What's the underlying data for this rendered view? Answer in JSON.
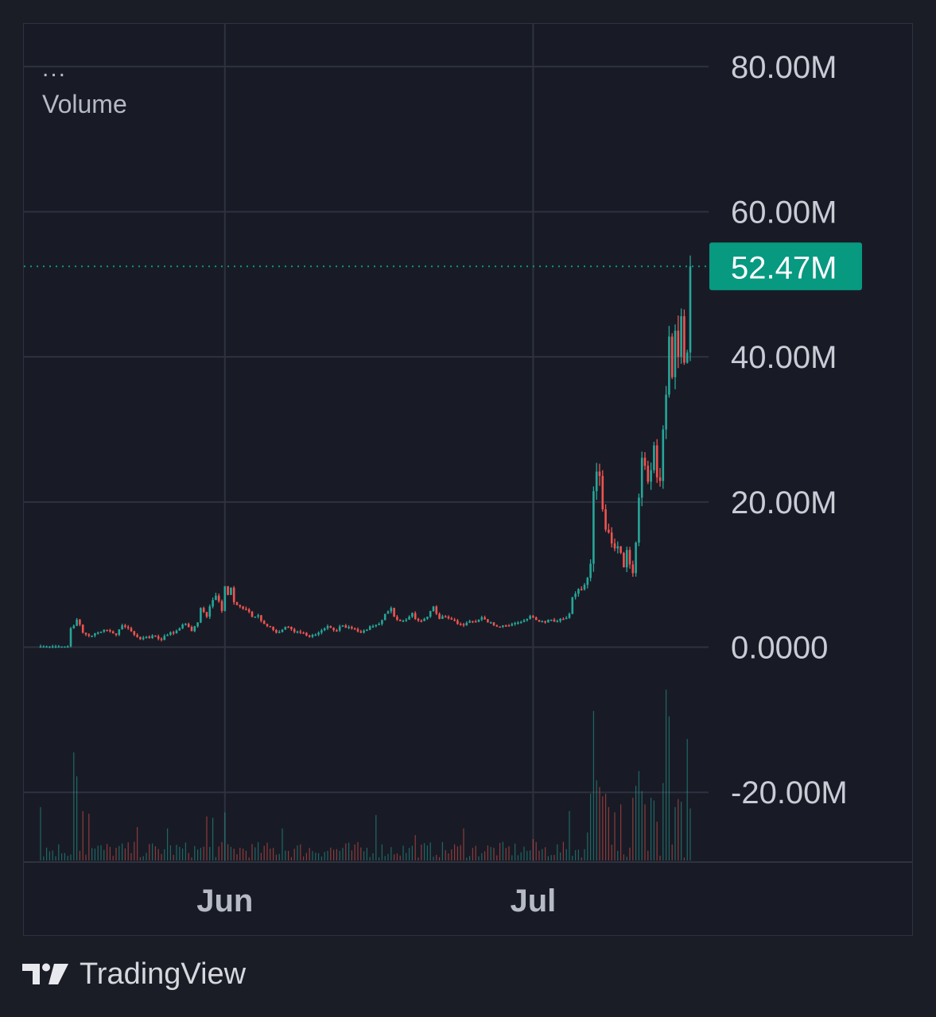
{
  "legend": {
    "dots": "...",
    "volume_label": "Volume"
  },
  "price_tag": {
    "label": "52.47M",
    "color": "#089981"
  },
  "brand": {
    "name": "TradingView"
  },
  "colors": {
    "up": "#26a69a",
    "down": "#ef5350",
    "grid": "#2e3240",
    "background": "#181b25"
  },
  "chart_data": {
    "type": "candlestick",
    "title": "",
    "xlabel": "",
    "ylabel": "",
    "y_ticks": [
      {
        "value": 80,
        "label": "80.00M"
      },
      {
        "value": 60,
        "label": "60.00M"
      },
      {
        "value": 40,
        "label": "40.00M"
      },
      {
        "value": 20,
        "label": "20.00M"
      },
      {
        "value": 0,
        "label": "0.0000"
      },
      {
        "value": -20,
        "label": "-20.00M"
      }
    ],
    "ylim": [
      -29.5,
      86
    ],
    "x_ticks": [
      {
        "label": "Jun",
        "index": 61
      },
      {
        "label": "Jul",
        "index": 163
      }
    ],
    "last_value": 52.47,
    "unit": "M",
    "grid": true,
    "price_series": [
      [
        0,
        0.1
      ],
      [
        9,
        0.1
      ],
      [
        10,
        2.6
      ],
      [
        12,
        3.8
      ],
      [
        14,
        2.0
      ],
      [
        17,
        1.6
      ],
      [
        21,
        2.4
      ],
      [
        25,
        1.7
      ],
      [
        27,
        3.0
      ],
      [
        30,
        2.2
      ],
      [
        33,
        1.1
      ],
      [
        37,
        1.6
      ],
      [
        40,
        1.0
      ],
      [
        42,
        1.7
      ],
      [
        45,
        2.3
      ],
      [
        48,
        3.2
      ],
      [
        50,
        2.2
      ],
      [
        52,
        3.4
      ],
      [
        53,
        5.4
      ],
      [
        55,
        4.2
      ],
      [
        57,
        6.5
      ],
      [
        58,
        7.1
      ],
      [
        60,
        5.0
      ],
      [
        61,
        8.4
      ],
      [
        62,
        7.2
      ],
      [
        63,
        8.2
      ],
      [
        64,
        6.2
      ],
      [
        66,
        5.6
      ],
      [
        68,
        5.2
      ],
      [
        70,
        4.2
      ],
      [
        72,
        4.4
      ],
      [
        74,
        3.2
      ],
      [
        76,
        2.8
      ],
      [
        78,
        2.0
      ],
      [
        80,
        2.4
      ],
      [
        82,
        2.8
      ],
      [
        84,
        2.1
      ],
      [
        86,
        2.0
      ],
      [
        88,
        1.6
      ],
      [
        90,
        1.7
      ],
      [
        92,
        2.0
      ],
      [
        95,
        2.9
      ],
      [
        98,
        2.3
      ],
      [
        100,
        3.0
      ],
      [
        102,
        2.8
      ],
      [
        104,
        2.5
      ],
      [
        106,
        2.0
      ],
      [
        108,
        2.4
      ],
      [
        110,
        2.9
      ],
      [
        112,
        3.2
      ],
      [
        114,
        4.6
      ],
      [
        116,
        5.4
      ],
      [
        117,
        4.2
      ],
      [
        119,
        3.6
      ],
      [
        121,
        3.8
      ],
      [
        123,
        4.7
      ],
      [
        124,
        3.9
      ],
      [
        126,
        3.6
      ],
      [
        128,
        4.2
      ],
      [
        130,
        5.6
      ],
      [
        132,
        3.9
      ],
      [
        134,
        4.2
      ],
      [
        136,
        3.8
      ],
      [
        138,
        3.2
      ],
      [
        140,
        3.0
      ],
      [
        142,
        3.6
      ],
      [
        144,
        3.5
      ],
      [
        146,
        4.1
      ],
      [
        148,
        3.4
      ],
      [
        150,
        3.0
      ],
      [
        152,
        2.8
      ],
      [
        154,
        3.0
      ],
      [
        156,
        3.2
      ],
      [
        158,
        3.4
      ],
      [
        160,
        3.7
      ],
      [
        162,
        4.3
      ],
      [
        163,
        4.1
      ],
      [
        165,
        3.5
      ],
      [
        167,
        3.4
      ],
      [
        169,
        3.8
      ],
      [
        171,
        3.6
      ],
      [
        173,
        3.9
      ],
      [
        175,
        4.6
      ],
      [
        176,
        6.9
      ],
      [
        178,
        8.0
      ],
      [
        180,
        8.6
      ],
      [
        182,
        11.5
      ],
      [
        183,
        21.5
      ],
      [
        184,
        24.2
      ],
      [
        185,
        23.6
      ],
      [
        186,
        19.0
      ],
      [
        187,
        16.2
      ],
      [
        188,
        15.8
      ],
      [
        189,
        14.3
      ],
      [
        190,
        13.6
      ],
      [
        191,
        13.9
      ],
      [
        192,
        13.0
      ],
      [
        193,
        11.0
      ],
      [
        194,
        13.4
      ],
      [
        195,
        11.4
      ],
      [
        196,
        10.2
      ],
      [
        197,
        14.4
      ],
      [
        198,
        20.6
      ],
      [
        199,
        26.1
      ],
      [
        200,
        25.0
      ],
      [
        201,
        22.8
      ],
      [
        202,
        24.4
      ],
      [
        203,
        27.8
      ],
      [
        204,
        23.4
      ],
      [
        205,
        22.9
      ],
      [
        206,
        30.0
      ],
      [
        207,
        34.8
      ],
      [
        208,
        42.8
      ],
      [
        209,
        37.2
      ],
      [
        210,
        43.6
      ],
      [
        211,
        40.0
      ],
      [
        212,
        45.6
      ],
      [
        213,
        39.2
      ],
      [
        214,
        40.6
      ],
      [
        215,
        52.47
      ]
    ],
    "volume_scale_note": "relative volume (0-1), no axis printed",
    "volume_spikes": [
      [
        0,
        0.4
      ],
      [
        11,
        0.81
      ],
      [
        12,
        0.63
      ],
      [
        14,
        0.37
      ],
      [
        16,
        0.35
      ],
      [
        32,
        0.25
      ],
      [
        42,
        0.24
      ],
      [
        55,
        0.33
      ],
      [
        57,
        0.32
      ],
      [
        61,
        0.36
      ],
      [
        80,
        0.24
      ],
      [
        111,
        0.34
      ],
      [
        124,
        0.19
      ],
      [
        140,
        0.24
      ],
      [
        163,
        0.16
      ],
      [
        175,
        0.37
      ],
      [
        181,
        0.21
      ],
      [
        182,
        0.5
      ],
      [
        183,
        1.12
      ],
      [
        184,
        0.6
      ],
      [
        185,
        0.55
      ],
      [
        186,
        0.48
      ],
      [
        187,
        0.5
      ],
      [
        188,
        0.4
      ],
      [
        190,
        0.36
      ],
      [
        192,
        0.42
      ],
      [
        196,
        0.47
      ],
      [
        197,
        0.56
      ],
      [
        198,
        0.67
      ],
      [
        199,
        0.52
      ],
      [
        200,
        0.42
      ],
      [
        202,
        0.47
      ],
      [
        203,
        0.45
      ],
      [
        204,
        0.29
      ],
      [
        206,
        0.58
      ],
      [
        207,
        1.28
      ],
      [
        208,
        1.08
      ],
      [
        210,
        0.4
      ],
      [
        211,
        0.46
      ],
      [
        212,
        0.44
      ],
      [
        214,
        0.91
      ],
      [
        215,
        0.39
      ]
    ]
  }
}
